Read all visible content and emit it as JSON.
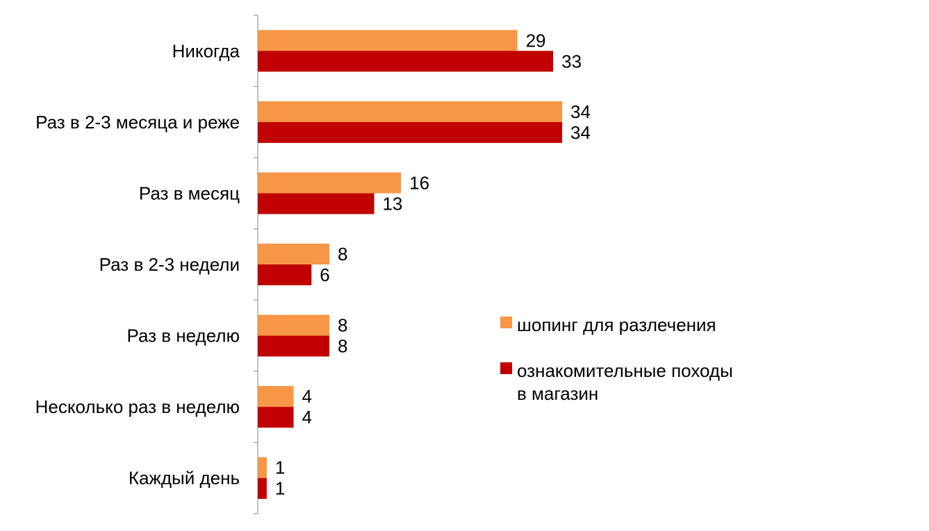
{
  "chart_data": {
    "type": "bar",
    "orientation": "horizontal",
    "categories": [
      "Никогда",
      "Раз в 2-3 месяца и реже",
      "Раз в месяц",
      "Раз в 2-3 недели",
      "Раз в неделю",
      "Несколько раз в неделю",
      "Каждый день"
    ],
    "series": [
      {
        "name": "шопинг для разлечения",
        "color": "#F79646",
        "values": [
          29,
          34,
          16,
          8,
          8,
          4,
          1
        ]
      },
      {
        "name": "ознакомительные походы в магазин",
        "color": "#C00000",
        "values": [
          33,
          34,
          13,
          6,
          8,
          4,
          1
        ]
      }
    ],
    "legend": {
      "position": "right",
      "items": [
        {
          "lines": [
            "шопинг для разлечения"
          ],
          "color": "#F79646"
        },
        {
          "lines": [
            "ознакомительные походы",
            "в магазин"
          ],
          "color": "#C00000"
        }
      ]
    },
    "xlim": [
      0,
      34
    ],
    "grid": false
  }
}
